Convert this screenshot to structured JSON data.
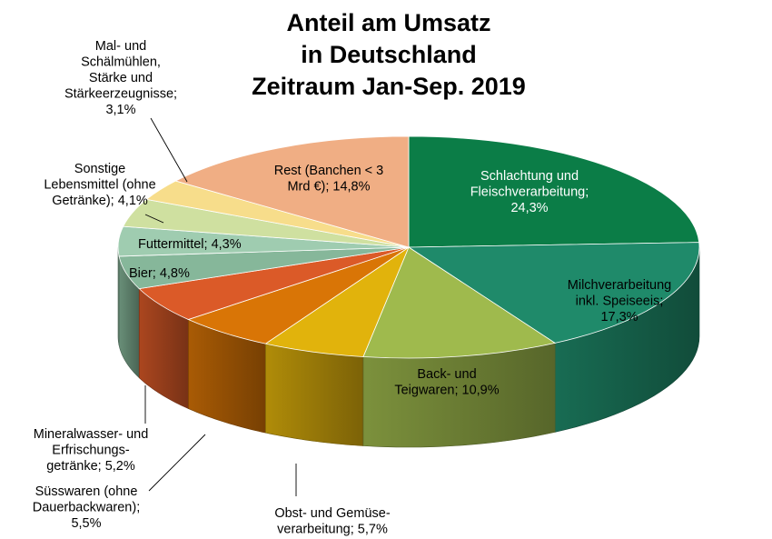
{
  "chart_data": {
    "type": "pie",
    "style": "3d-exploded-none",
    "title": [
      "Anteil am Umsatz",
      "in Deutschland",
      "Zeitraum Jan-Sep. 2019"
    ],
    "slices": [
      {
        "label": [
          "Schlachtung und",
          "Fleischverarbeitung;",
          "24,3%"
        ],
        "value": 24.3,
        "color": "#0b7d47",
        "label_color": "#ffffff"
      },
      {
        "label": [
          "Milchverarbeitung",
          "inkl.  Speiseeis;",
          "17,3%"
        ],
        "value": 17.3,
        "color": "#1f8a6a",
        "label_color": "#000000"
      },
      {
        "label": [
          "Back- und",
          "Teigwaren;  10,9%"
        ],
        "value": 10.9,
        "color": "#9fba4d",
        "label_color": "#000000"
      },
      {
        "label": [
          "Obst-  und Gemüse-",
          "verarbeitung;  5,7%"
        ],
        "value": 5.7,
        "color": "#e1b30c",
        "label_color": "#000000"
      },
      {
        "label": [
          "Süsswaren  (ohne",
          "Dauerbackwaren);",
          "5,5%"
        ],
        "value": 5.5,
        "color": "#d97506",
        "label_color": "#000000"
      },
      {
        "label": [
          "Mineralwasser-  und",
          "Erfrischungs-",
          "getränke;  5,2%"
        ],
        "value": 5.2,
        "color": "#db5a28",
        "label_color": "#000000"
      },
      {
        "label": [
          "Bier;  4,8%"
        ],
        "value": 4.8,
        "color": "#86b79a",
        "label_color": "#000000"
      },
      {
        "label": [
          "Futtermittel;  4,3%"
        ],
        "value": 4.3,
        "color": "#9fccb0",
        "label_color": "#000000"
      },
      {
        "label": [
          "Sonstige",
          "Lebensmittel  (ohne",
          "Getränke);  4,1%"
        ],
        "value": 4.1,
        "color": "#cfe0a0",
        "label_color": "#000000"
      },
      {
        "label": [
          "Mal-  und",
          "Schälmühlen,",
          "Stärke  und",
          "Stärkeerzeugnisse;",
          "3,1%"
        ],
        "value": 3.1,
        "color": "#f7dd8b",
        "label_color": "#000000"
      },
      {
        "label": [
          "Rest  (Banchen < 3",
          "Mrd €);  14,8%"
        ],
        "value": 14.8,
        "color": "#f0ae84",
        "label_color": "#000000"
      }
    ]
  }
}
